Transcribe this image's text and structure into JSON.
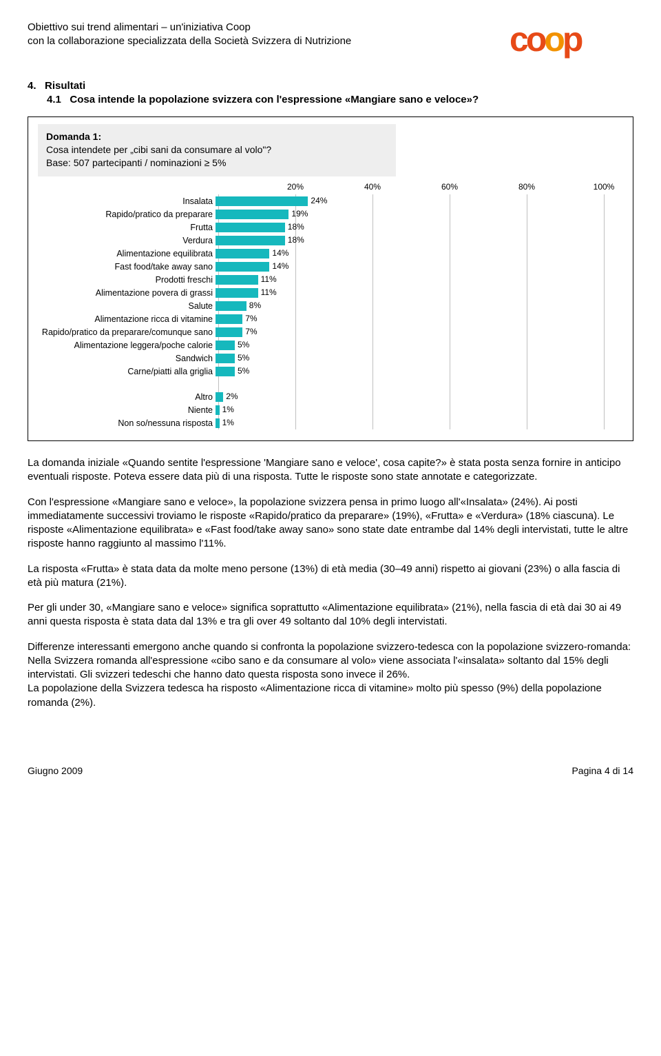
{
  "header": {
    "line1": "Obiettivo sui trend alimentari – un'iniziativa Coop",
    "line2": "con la collaborazione specializzata della Società Svizzera di Nutrizione"
  },
  "logo": {
    "text": "coop",
    "colors": {
      "c": "#e74a17",
      "o1": "#e74a17",
      "o2": "#f29200",
      "p": "#e74a17"
    }
  },
  "section": {
    "num": "4.",
    "title": "Risultati",
    "sub_num": "4.1",
    "sub_title": "Cosa intende la popolazione svizzera con l'espressione «Mangiare sano e veloce»?"
  },
  "chart": {
    "question_title": "Domanda 1:",
    "question_line1": "Cosa intendete per „cibi sani da consumare al volo\"?",
    "question_line2": "Base: 507 partecipanti /  nominazioni ≥ 5%",
    "axis_ticks": [
      20,
      40,
      60,
      80,
      100
    ],
    "axis_max": 100,
    "bar_color": "#16b8bd",
    "grid_color": "#bfbfbf",
    "main_items": [
      {
        "label": "Insalata",
        "value": 24
      },
      {
        "label": "Rapido/pratico da preparare",
        "value": 19
      },
      {
        "label": "Frutta",
        "value": 18
      },
      {
        "label": "Verdura",
        "value": 18
      },
      {
        "label": "Alimentazione equilibrata",
        "value": 14
      },
      {
        "label": "Fast food/take away sano",
        "value": 14
      },
      {
        "label": "Prodotti freschi",
        "value": 11
      },
      {
        "label": "Alimentazione povera di grassi",
        "value": 11
      },
      {
        "label": "Salute",
        "value": 8
      },
      {
        "label": "Alimentazione ricca di vitamine",
        "value": 7
      },
      {
        "label": "Rapido/pratico da preparare/comunque sano",
        "value": 7
      },
      {
        "label": "Alimentazione leggera/poche calorie",
        "value": 5
      },
      {
        "label": "Sandwich",
        "value": 5
      },
      {
        "label": "Carne/piatti alla griglia",
        "value": 5
      }
    ],
    "other_items": [
      {
        "label": "Altro",
        "value": 2
      },
      {
        "label": "Niente",
        "value": 1
      },
      {
        "label": "Non so/nessuna risposta",
        "value": 1
      }
    ]
  },
  "paragraphs": {
    "p1": "La domanda iniziale «Quando sentite l'espressione 'Mangiare sano e veloce', cosa capite?» è stata posta senza fornire in anticipo eventuali risposte. Poteva essere data più di una risposta. Tutte le risposte sono state annotate e categorizzate.",
    "p2": "Con l'espressione «Mangiare sano e veloce», la popolazione svizzera pensa in primo luogo all'«Insalata» (24%). Ai posti immediatamente successivi troviamo le risposte «Rapido/pratico da preparare» (19%), «Frutta» e «Verdura» (18% ciascuna). Le risposte «Alimentazione equilibrata» e «Fast food/take away sano» sono state date entrambe dal 14% degli intervistati, tutte le altre risposte hanno raggiunto al massimo l'11%.",
    "p3": "La risposta «Frutta» è stata data da molte meno persone (13%) di età media (30–49 anni) rispetto ai giovani (23%) o alla fascia di età più matura (21%).",
    "p4": "Per gli under 30, «Mangiare sano e veloce» significa soprattutto «Alimentazione equilibrata» (21%), nella fascia di età dai 30 ai 49 anni questa risposta è stata data dal 13% e tra gli over 49 soltanto dal 10% degli intervistati.",
    "p5": "Differenze interessanti emergono anche quando si confronta la popolazione svizzero-tedesca con la popolazione svizzero-romanda:\nNella Svizzera romanda all'espressione «cibo sano e da consumare al volo» viene associata l'«insalata» soltanto dal 15% degli intervistati. Gli svizzeri tedeschi che hanno dato questa risposta sono invece il 26%.\nLa popolazione della Svizzera tedesca ha risposto «Alimentazione ricca di vitamine» molto più spesso (9%) della popolazione romanda (2%)."
  },
  "footer": {
    "left": "Giugno 2009",
    "right": "Pagina 4 di 14"
  }
}
